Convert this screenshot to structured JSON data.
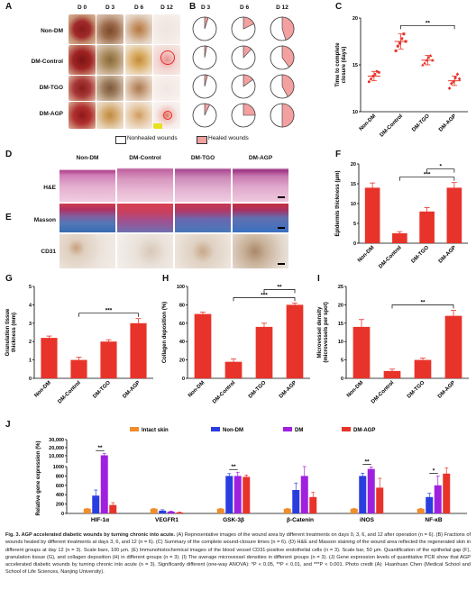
{
  "panels": {
    "A": "A",
    "B": "B",
    "C": "C",
    "D": "D",
    "E": "E",
    "F": "F",
    "G": "G",
    "H": "H",
    "I": "I",
    "J": "J"
  },
  "panelA": {
    "days": [
      "D 0",
      "D 3",
      "D 6",
      "D 12"
    ],
    "groups": [
      "Non-DM",
      "DM-Control",
      "DM-TGO",
      "DM-AGP"
    ]
  },
  "panelB": {
    "days": [
      "D 3",
      "D 6",
      "D 12"
    ],
    "legend": {
      "nonhealed": "Nonhealed wounds",
      "healed": "Healed wounds"
    },
    "healed_fraction": [
      [
        0.05,
        0.18,
        0.45
      ],
      [
        0.03,
        0.12,
        0.4
      ],
      [
        0.04,
        0.15,
        0.42
      ],
      [
        0.07,
        0.25,
        0.5
      ]
    ]
  },
  "panelD": {
    "groups": [
      "Non-DM",
      "DM-Control",
      "DM-TGO",
      "DM-AGP"
    ],
    "rows": [
      "H&E",
      "Masson",
      "CD31"
    ]
  },
  "colors": {
    "red": "#e8332a",
    "pink": "#f2a0a0",
    "gray": "#888888",
    "orange": "#f08c2a",
    "blue": "#2a3de0",
    "purple": "#a020e0"
  },
  "chart_data": [
    {
      "id": "C",
      "type": "scatter",
      "ylabel": "Time to complete closure (days)",
      "ylim": [
        10,
        20
      ],
      "yticks": [
        10,
        15,
        20
      ],
      "categories": [
        "Non-DM",
        "DM-Control",
        "DM-TGO",
        "DM-AGP"
      ],
      "means": [
        13.8,
        17.5,
        15.5,
        13.3
      ],
      "errors": [
        0.5,
        0.8,
        0.5,
        0.5
      ],
      "points": [
        [
          13.2,
          13.5,
          13.8,
          14.0,
          14.3,
          14.2
        ],
        [
          16.5,
          17.0,
          17.3,
          17.8,
          18.3,
          17.5
        ],
        [
          15.0,
          15.2,
          15.5,
          15.8,
          16.0,
          15.5
        ],
        [
          12.5,
          13.0,
          13.2,
          13.6,
          14.0,
          13.5
        ]
      ],
      "markers": [
        "circle",
        "square",
        "triangle",
        "diamond"
      ],
      "significance": [
        {
          "between": [
            1,
            3
          ],
          "label": "**"
        }
      ]
    },
    {
      "id": "F",
      "type": "bar",
      "ylabel": "Epidermis thickness (μm)",
      "ylim": [
        0,
        20
      ],
      "yticks": [
        0,
        5,
        10,
        15,
        20
      ],
      "categories": [
        "Non-DM",
        "DM-Control",
        "DM-TGO",
        "DM-AGP"
      ],
      "values": [
        14,
        2.5,
        8,
        14
      ],
      "errors": [
        1.2,
        0.4,
        1.0,
        1.3
      ],
      "significance": [
        {
          "between": [
            1,
            3
          ],
          "label": "***"
        },
        {
          "between": [
            2,
            3
          ],
          "label": "*"
        }
      ]
    },
    {
      "id": "G",
      "type": "bar",
      "ylabel": "Granulation tissue thickness (mm)",
      "ylim": [
        0,
        5
      ],
      "yticks": [
        0,
        1,
        2,
        3,
        4,
        5
      ],
      "categories": [
        "Non-DM",
        "DM-Control",
        "DM-TGO",
        "DM-AGP"
      ],
      "values": [
        2.2,
        1.0,
        2.0,
        3.0
      ],
      "errors": [
        0.1,
        0.15,
        0.1,
        0.25
      ],
      "significance": [
        {
          "between": [
            1,
            3
          ],
          "label": "***"
        }
      ]
    },
    {
      "id": "H",
      "type": "bar",
      "ylabel": "Collagen deposition (%)",
      "ylim": [
        0,
        100
      ],
      "yticks": [
        0,
        20,
        40,
        60,
        80,
        100
      ],
      "categories": [
        "Non-DM",
        "DM-Control",
        "DM-TGO",
        "DM-AGP"
      ],
      "values": [
        70,
        18,
        56,
        80
      ],
      "errors": [
        2,
        3,
        4,
        2
      ],
      "significance": [
        {
          "between": [
            1,
            3
          ],
          "label": "***"
        },
        {
          "between": [
            2,
            3
          ],
          "label": "**"
        }
      ]
    },
    {
      "id": "I",
      "type": "bar",
      "ylabel": "Microvessel density (microvessels per spot)",
      "ylim": [
        0,
        25
      ],
      "yticks": [
        0,
        5,
        10,
        15,
        20,
        25
      ],
      "categories": [
        "Non-DM",
        "DM-Control",
        "DM-TGO",
        "DM-AGP"
      ],
      "values": [
        14,
        2,
        5,
        17
      ],
      "errors": [
        2,
        0.5,
        0.5,
        1.5
      ],
      "significance": [
        {
          "between": [
            1,
            3
          ],
          "label": "**"
        }
      ]
    },
    {
      "id": "J",
      "type": "bar",
      "ylabel": "Relative gene expression (%)",
      "yticks": [
        "0",
        "200",
        "400",
        "600",
        "800",
        "1000",
        "10,000",
        "20,000",
        "30,000"
      ],
      "categories": [
        "HIF-1α",
        "VEGFR1",
        "GSK-3β",
        "β-Catenin",
        "iNOS",
        "NF-κB"
      ],
      "series": [
        {
          "name": "Intact skin",
          "values": [
            100,
            100,
            100,
            100,
            100,
            100
          ]
        },
        {
          "name": "Non-DM",
          "values": [
            380,
            60,
            800,
            500,
            800,
            350
          ]
        },
        {
          "name": "DM",
          "values": [
            10500,
            40,
            800,
            800,
            950,
            600
          ]
        },
        {
          "name": "DM-AGP",
          "values": [
            180,
            20,
            780,
            350,
            550,
            850
          ]
        }
      ],
      "errors": [
        [
          10,
          10,
          10,
          10,
          10,
          10
        ],
        [
          120,
          20,
          50,
          150,
          60,
          80
        ],
        [
          2500,
          10,
          80,
          200,
          40,
          200
        ],
        [
          50,
          10,
          40,
          100,
          200,
          120
        ]
      ],
      "significance": [
        {
          "category": 0,
          "label": "**"
        },
        {
          "category": 2,
          "label": "**"
        },
        {
          "category": 4,
          "label": "**"
        },
        {
          "category": 5,
          "label": "*"
        }
      ]
    }
  ],
  "caption": {
    "title": "Fig. 3. AGP accelerated diabetic wounds by turning chronic into acute.",
    "body": " (A) Representative images of the wound area by different treatments on days 0, 3, 6, and 12 after operation (n = 6). (B) Fractions of wounds healed by different treatments at days 3, 6, and 12 (n = 6). (C) Summary of the complete wound-closure times (n = 6). (D) H&E and Masson staining of the wound area reflected the regenerated skin in different groups at day 12 (n = 3). Scale bars, 100 μm. (E) Immunohistochemical images of the blood vessel CD31-positive endothelial cells (n = 3). Scale bar, 50 μm. Quantification of the epithelial gap (F), granulation tissue (G), and collagen deposition (H) in different groups (n = 3). (I) The average microvessel densities in different groups (n = 3). (J) Gene expression levels of quantitative PCR show that AGP accelerated diabetic wounds by turning chronic into acute (n = 3). Significantly different (one-way ANOVA): *P < 0.05, **P < 0.01, and ***P < 0.001. Photo credit (A): Huanhuan Chen (Medical School and School of Life Sciences, Nanjing University)."
  }
}
